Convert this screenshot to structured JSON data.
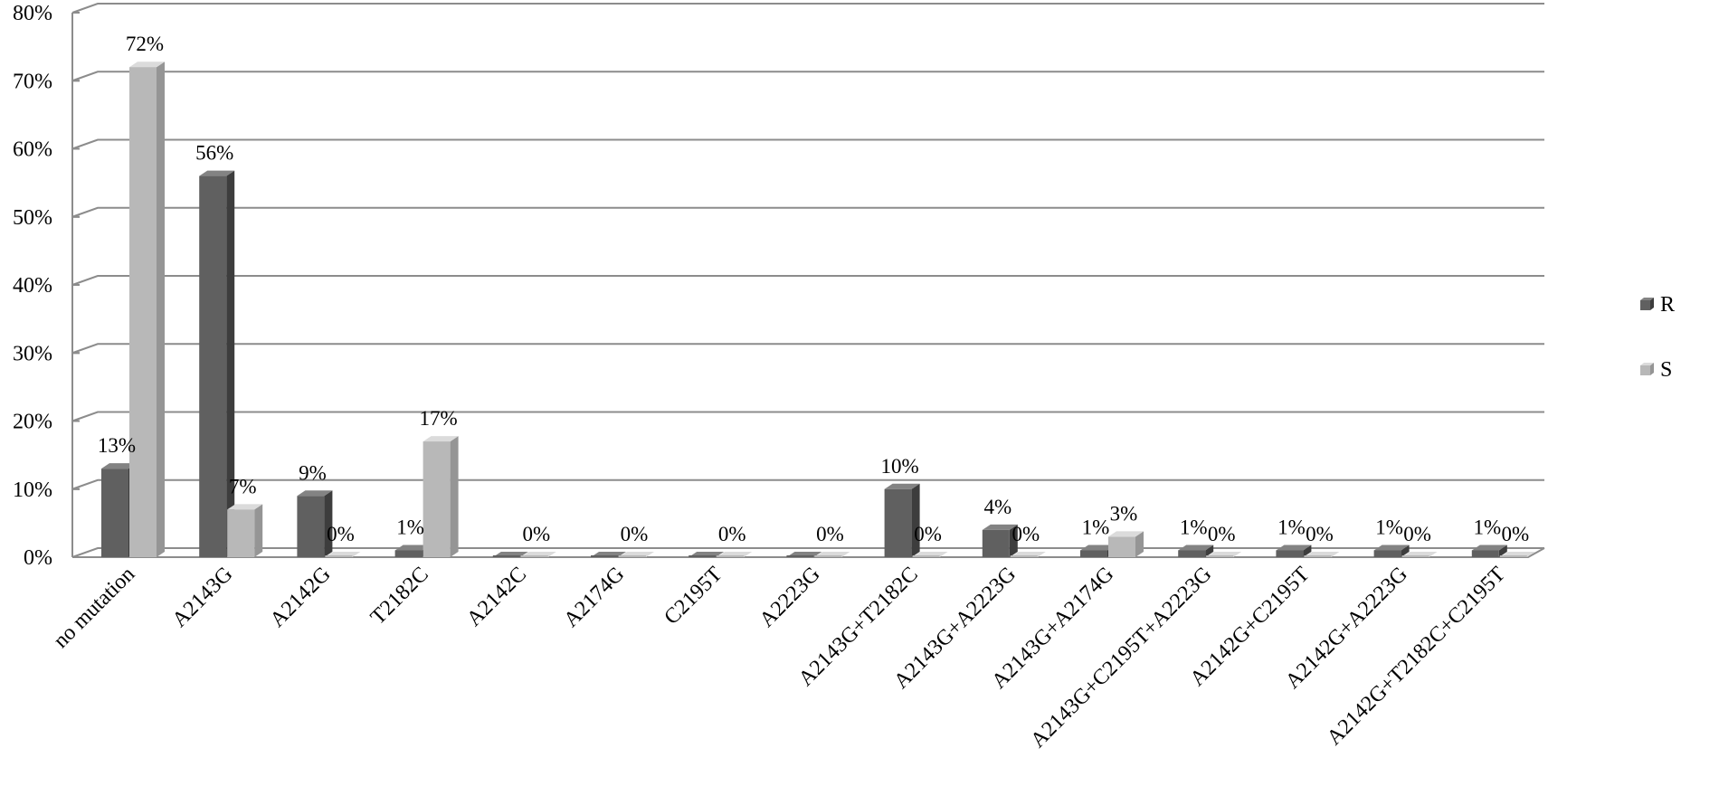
{
  "chart_data": {
    "type": "bar",
    "categories": [
      "no mutation",
      "A2143G",
      "A2142G",
      "T2182C",
      "A2142C",
      "A2174G",
      "C2195T",
      "A2223G",
      "A2143G+T2182C",
      "A2143G+A2223G",
      "A2143G+A2174G",
      "A2143G+C2195T+A2223G",
      "A2142G+C2195T",
      "A2142G+A2223G",
      "A2142G+T2182C+C2195T"
    ],
    "series": [
      {
        "name": "R",
        "values": [
          13,
          56,
          9,
          1,
          0,
          0,
          0,
          0,
          10,
          4,
          1,
          1,
          1,
          1,
          1
        ],
        "labels": [
          "13%",
          "56%",
          "9%",
          "1%",
          "",
          "",
          "",
          "",
          "10%",
          "4%",
          "1%",
          "1%",
          "1%",
          "1%",
          "1%"
        ]
      },
      {
        "name": "S",
        "values": [
          72,
          7,
          0,
          17,
          0,
          0,
          0,
          0,
          0,
          0,
          3,
          0,
          0,
          0,
          0
        ],
        "labels": [
          "72%",
          "7%",
          "0%",
          "17%",
          "0%",
          "0%",
          "0%",
          "0%",
          "0%",
          "0%",
          "3%",
          "0%",
          "0%",
          "0%",
          "0%"
        ]
      }
    ],
    "y_ticks": [
      "0%",
      "10%",
      "20%",
      "30%",
      "40%",
      "50%",
      "60%",
      "70%",
      "80%"
    ],
    "ylim": [
      0,
      80
    ],
    "grid": true,
    "legend": "right",
    "colors": {
      "R": "#606060",
      "S": "#b8b8b8",
      "grid": "#8c8c8c"
    }
  }
}
